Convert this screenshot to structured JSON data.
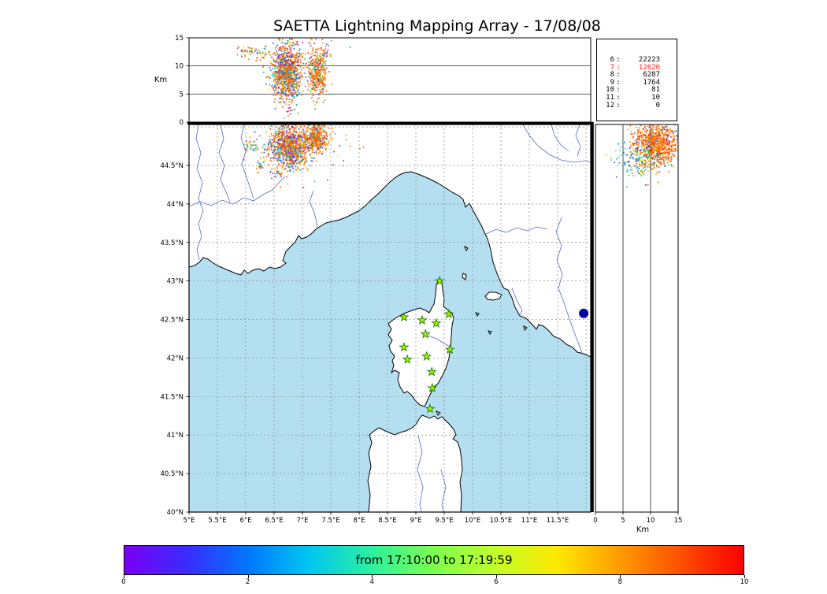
{
  "title": "SAETTA Lightning Mapping Array - 17/08/08",
  "top_panel": {
    "ylabel": "Km",
    "yticks": [
      "0",
      "5",
      "10",
      "15"
    ]
  },
  "right_panel": {
    "xlabel": "Km",
    "xticks": [
      "0",
      "5",
      "10",
      "15"
    ]
  },
  "map_panel": {
    "lat_ticks": [
      "40°N",
      "40.5°N",
      "41°N",
      "41.5°N",
      "42°N",
      "42.5°N",
      "43°N",
      "43.5°N",
      "44°N",
      "44.5°N"
    ],
    "lon_ticks": [
      "5°E",
      "5.5°E",
      "6°E",
      "6.5°E",
      "7°E",
      "7.5°E",
      "8°E",
      "8.5°E",
      "9°E",
      "9.5°E",
      "10°E",
      "10.5°E",
      "11°E",
      "11.5°E"
    ]
  },
  "stats_box": {
    "rows": [
      {
        "level": "6",
        "count": "22223",
        "color": "#000000"
      },
      {
        "level": "7",
        "count": "12620",
        "color": "#ff2222"
      },
      {
        "level": "8",
        "count": "6287",
        "color": "#000000"
      },
      {
        "level": "9",
        "count": "1764",
        "color": "#000000"
      },
      {
        "level": "10",
        "count": "81",
        "color": "#000000"
      },
      {
        "level": "11",
        "count": "10",
        "color": "#000000"
      },
      {
        "level": "12",
        "count": "0",
        "color": "#000000"
      }
    ]
  },
  "colorbar": {
    "label": "from 17:10:00 to 17:19:59",
    "ticks": [
      "0",
      "2",
      "4",
      "6",
      "8",
      "10"
    ],
    "gradient": [
      "#7a00f5",
      "#3a2bff",
      "#0077ff",
      "#00c8f0",
      "#2df09e",
      "#7dff4f",
      "#c3ff2a",
      "#ffe800",
      "#ff9b00",
      "#ff4e00",
      "#fb0000"
    ]
  },
  "colors": {
    "sea": "#b4dff0",
    "land": "#ffffff",
    "coast": "#000000",
    "river": "#5566cc",
    "grid": "#888888",
    "lake": "#0000a0",
    "station_fill": "#a0f000",
    "station_stroke": "#267f00"
  },
  "palettes": {
    "warm": [
      "#ff4400",
      "#ff6600",
      "#ff6600",
      "#ff8800",
      "#ff2f00",
      "#ffaa00",
      "#e03000",
      "#ff7700"
    ],
    "cool": [
      "#2255ff",
      "#00aaff",
      "#00ddcc",
      "#33cc33",
      "#99dd00",
      "#1133cc"
    ],
    "mixed": [
      "#ff5500",
      "#ff5500",
      "#ff7000",
      "#ff7000",
      "#e02800",
      "#ff9900",
      "#ffdd00",
      "#22bb44",
      "#00bbdd",
      "#2255ff",
      "#2255ff",
      "#8822dd",
      "#ff8800"
    ],
    "mixed_warm": [
      "#ff5500",
      "#ff7000",
      "#ff8800",
      "#e03000",
      "#ffaa00",
      "#2255ff",
      "#22bb44",
      "#ff6600",
      "#ff6600"
    ],
    "mixed2": [
      "#ff7700",
      "#33cc33",
      "#00aaff",
      "#ffdd00",
      "#ff4400",
      "#7733dd"
    ]
  },
  "chart_data": [
    {
      "id": "altitude-vs-longitude",
      "type": "scatter",
      "ylabel": "Km",
      "xlim": [
        5,
        12.08
      ],
      "ylim": [
        0,
        15
      ],
      "yticks": [
        0,
        5,
        10,
        15
      ],
      "grid_y": [
        5,
        10
      ],
      "clusters": [
        {
          "x": 6.72,
          "y": 8.6,
          "sx": 0.13,
          "sy": 2.6,
          "n": 1000,
          "palette": "mixed"
        },
        {
          "x": 7.28,
          "y": 8.8,
          "sx": 0.09,
          "sy": 2.2,
          "n": 380,
          "palette": "mixed_warm"
        },
        {
          "x": 6.02,
          "y": 12.6,
          "sx": 0.08,
          "sy": 0.5,
          "n": 35,
          "palette": "mixed2"
        },
        {
          "x": 6.28,
          "y": 12.2,
          "sx": 0.06,
          "sy": 0.5,
          "n": 25,
          "palette": "mixed2"
        },
        {
          "x": 6.85,
          "y": 12.0,
          "sx": 0.45,
          "sy": 1.3,
          "n": 70,
          "palette": "mixed"
        }
      ]
    },
    {
      "id": "map",
      "type": "scatter",
      "xlim": [
        5,
        12.08
      ],
      "ylim": [
        40,
        45.03
      ],
      "clusters": [
        {
          "x": 6.78,
          "y": 44.74,
          "sx": 0.18,
          "sy": 0.13,
          "n": 1000,
          "palette": "mixed"
        },
        {
          "x": 7.25,
          "y": 44.86,
          "sx": 0.1,
          "sy": 0.09,
          "n": 380,
          "palette": "mixed_warm"
        },
        {
          "x": 6.07,
          "y": 44.75,
          "sx": 0.07,
          "sy": 0.04,
          "n": 35,
          "palette": "mixed2"
        },
        {
          "x": 6.26,
          "y": 44.51,
          "sx": 0.04,
          "sy": 0.03,
          "n": 20,
          "palette": "mixed2"
        },
        {
          "x": 6.56,
          "y": 44.4,
          "sx": 0.05,
          "sy": 0.03,
          "n": 22,
          "palette": "mixed2"
        },
        {
          "x": 6.9,
          "y": 44.7,
          "sx": 0.5,
          "sy": 0.28,
          "n": 60,
          "palette": "mixed"
        }
      ],
      "stations": [
        {
          "lon": 9.42,
          "lat": 43.0
        },
        {
          "lon": 8.79,
          "lat": 42.53
        },
        {
          "lon": 9.11,
          "lat": 42.49
        },
        {
          "lon": 9.36,
          "lat": 42.45
        },
        {
          "lon": 9.58,
          "lat": 42.57
        },
        {
          "lon": 9.17,
          "lat": 42.31
        },
        {
          "lon": 8.79,
          "lat": 42.14
        },
        {
          "lon": 9.6,
          "lat": 42.11
        },
        {
          "lon": 8.85,
          "lat": 41.98
        },
        {
          "lon": 9.19,
          "lat": 42.02
        },
        {
          "lon": 9.28,
          "lat": 41.82
        },
        {
          "lon": 9.29,
          "lat": 41.61
        },
        {
          "lon": 9.25,
          "lat": 41.34
        }
      ],
      "lake": {
        "lon": 11.96,
        "lat": 42.58
      }
    },
    {
      "id": "altitude-vs-latitude",
      "type": "scatter",
      "xlabel": "Km",
      "xlim": [
        0,
        15
      ],
      "ylim": [
        40,
        45.03
      ],
      "xticks": [
        0,
        5,
        10,
        15
      ],
      "grid_x": [
        5,
        10
      ],
      "clusters": [
        {
          "x": 10.8,
          "y": 44.76,
          "sx": 2.1,
          "sy": 0.14,
          "n": 800,
          "palette": "warm"
        },
        {
          "x": 8.0,
          "y": 44.58,
          "sx": 2.4,
          "sy": 0.12,
          "n": 160,
          "palette": "cool"
        },
        {
          "x": 12.0,
          "y": 44.92,
          "sx": 1.8,
          "sy": 0.1,
          "n": 60,
          "palette": "mixed"
        }
      ]
    }
  ]
}
